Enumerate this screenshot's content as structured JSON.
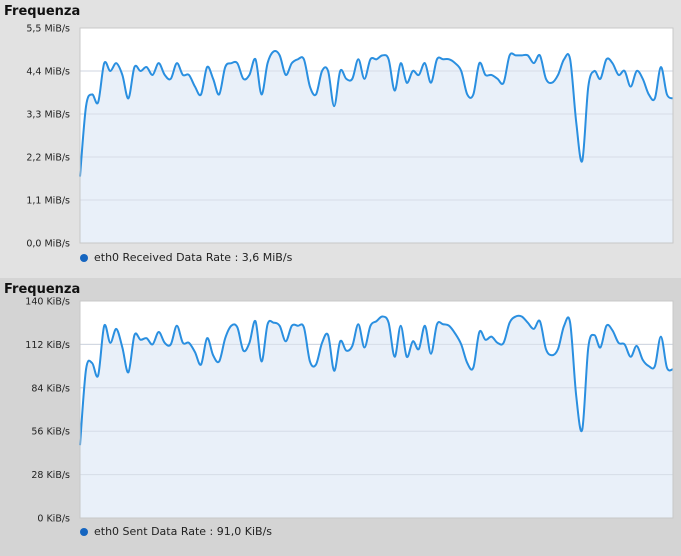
{
  "colors": {
    "line": "#2a8fe0",
    "fill": "#e8eff9",
    "grid": "#cfd6e0",
    "legend_dot": "#1565c0"
  },
  "charts": [
    {
      "title": "Frequenza",
      "legend_label": "eth0 Received Data Rate : 3,6 MiB/s",
      "tick_labels": [
        "0,0 MiB/s",
        "1,1 MiB/s",
        "2,2 MiB/s",
        "3,3 MiB/s",
        "4,4 MiB/s",
        "5,5 MiB/s"
      ]
    },
    {
      "title": "Frequenza",
      "legend_label": "eth0 Sent Data Rate : 91,0 KiB/s",
      "tick_labels": [
        "0 KiB/s",
        "28 KiB/s",
        "56 KiB/s",
        "84 KiB/s",
        "112 KiB/s",
        "140 KiB/s"
      ]
    }
  ],
  "chart_data": [
    {
      "type": "area",
      "title": "Frequenza",
      "xlabel": "",
      "ylabel": "",
      "yunit": "MiB/s",
      "ylim": [
        0,
        5.5
      ],
      "grid": true,
      "legend": "bottom-left",
      "series": [
        {
          "name": "eth0 Received Data Rate",
          "values": [
            1.7,
            3.5,
            3.8,
            3.6,
            4.6,
            4.4,
            4.6,
            4.3,
            3.7,
            4.5,
            4.4,
            4.5,
            4.3,
            4.6,
            4.3,
            4.2,
            4.6,
            4.3,
            4.3,
            4.0,
            3.8,
            4.5,
            4.2,
            3.8,
            4.5,
            4.6,
            4.6,
            4.2,
            4.3,
            4.7,
            3.8,
            4.6,
            4.9,
            4.8,
            4.3,
            4.6,
            4.7,
            4.7,
            4.0,
            3.8,
            4.4,
            4.4,
            3.5,
            4.4,
            4.2,
            4.2,
            4.7,
            4.2,
            4.7,
            4.7,
            4.8,
            4.7,
            3.9,
            4.6,
            4.1,
            4.4,
            4.3,
            4.6,
            4.1,
            4.7,
            4.7,
            4.7,
            4.6,
            4.4,
            3.8,
            3.8,
            4.6,
            4.3,
            4.3,
            4.2,
            4.1,
            4.8,
            4.8,
            4.8,
            4.8,
            4.6,
            4.8,
            4.2,
            4.1,
            4.3,
            4.7,
            4.7,
            3.1,
            2.1,
            4.0,
            4.4,
            4.2,
            4.7,
            4.6,
            4.3,
            4.4,
            4.0,
            4.4,
            4.2,
            3.8,
            3.7,
            4.5,
            3.8,
            3.7
          ]
        }
      ]
    },
    {
      "type": "area",
      "title": "Frequenza",
      "xlabel": "",
      "ylabel": "",
      "yunit": "KiB/s",
      "ylim": [
        0,
        140
      ],
      "grid": true,
      "legend": "bottom-left",
      "series": [
        {
          "name": "eth0 Sent Data Rate",
          "values": [
            47,
            96,
            100,
            92,
            124,
            113,
            122,
            110,
            94,
            118,
            115,
            116,
            112,
            120,
            113,
            112,
            124,
            113,
            113,
            107,
            99,
            116,
            105,
            101,
            116,
            124,
            123,
            108,
            113,
            127,
            101,
            125,
            126,
            124,
            114,
            124,
            124,
            123,
            101,
            99,
            113,
            118,
            95,
            114,
            108,
            111,
            125,
            110,
            124,
            127,
            130,
            126,
            104,
            124,
            104,
            114,
            109,
            124,
            106,
            125,
            125,
            124,
            119,
            112,
            100,
            97,
            120,
            115,
            117,
            113,
            113,
            126,
            130,
            130,
            126,
            122,
            127,
            109,
            105,
            109,
            124,
            126,
            79,
            57,
            110,
            118,
            110,
            124,
            121,
            113,
            112,
            104,
            111,
            102,
            98,
            98,
            117,
            97,
            96
          ]
        }
      ]
    }
  ]
}
